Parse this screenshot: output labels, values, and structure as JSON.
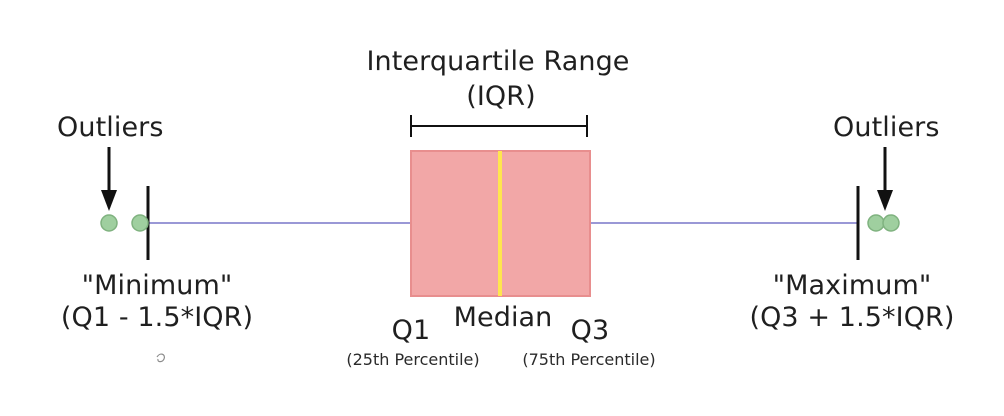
{
  "labels": {
    "iqr_title": "Interquartile Range",
    "iqr_abbrev": "(IQR)",
    "outliers_left": "Outliers",
    "outliers_right": "Outliers",
    "minimum": "\"Minimum\"",
    "minimum_formula": "(Q1 - 1.5*IQR)",
    "maximum": "\"Maximum\"",
    "maximum_formula": "(Q3 + 1.5*IQR)",
    "q1": "Q1",
    "q1_desc": "(25th Percentile)",
    "median": "Median",
    "q3": "Q3",
    "q3_desc": "(75th Percentile)"
  },
  "colors": {
    "box_fill": "#f2a7a7",
    "box_stroke": "#e88e8e",
    "median_line": "#ffe64d",
    "whisker_line": "#9a98d6",
    "outlier_fill": "#9fcf9f",
    "outlier_stroke": "#7fb27f",
    "ink": "#111111"
  }
}
